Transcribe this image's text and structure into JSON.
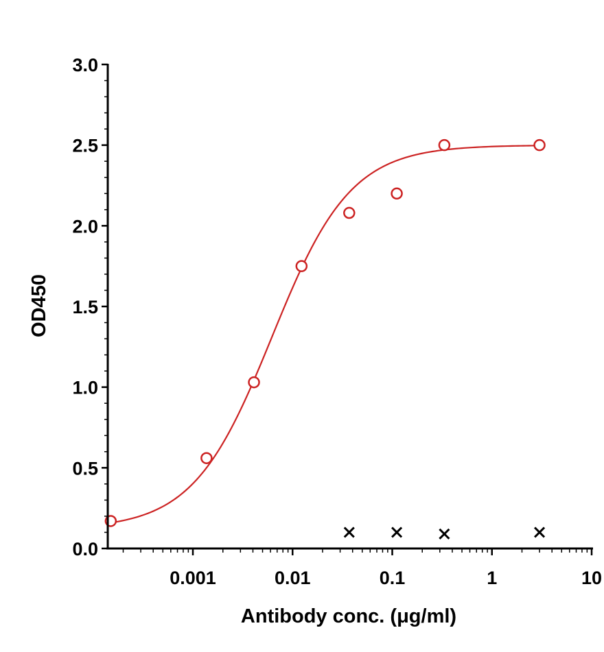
{
  "chart_data": {
    "type": "scatter",
    "title": "",
    "xlabel": "Antibody conc. (μg/ml)",
    "ylabel": "OD450",
    "x_scale": "log",
    "xlim": [
      0.00014,
      10
    ],
    "ylim": [
      0,
      3.0
    ],
    "x_ticks": [
      0.001,
      0.01,
      0.1,
      1,
      10
    ],
    "x_tick_labels": [
      "0.001",
      "0.01",
      "0.1",
      "1",
      "10"
    ],
    "y_ticks": [
      0,
      0.5,
      1.0,
      1.5,
      2.0,
      2.5,
      3.0
    ],
    "y_tick_labels": [
      "0.0",
      "0.5",
      "1.0",
      "1.5",
      "2.0",
      "2.5",
      "3.0"
    ],
    "grid": false,
    "legend": "none",
    "series": [
      {
        "marker": "open-circle",
        "color": "#cc2222",
        "x": [
          0.00015,
          0.00137,
          0.0041,
          0.0123,
          0.037,
          0.111,
          0.333,
          3.0
        ],
        "y": [
          0.17,
          0.56,
          1.03,
          1.75,
          2.08,
          2.2,
          2.5,
          2.5
        ],
        "fit": {
          "model": "4PL",
          "bottom": 0.12,
          "top": 2.5,
          "ec50": 0.0062,
          "hill": 1.1
        }
      },
      {
        "marker": "x-cross",
        "color": "#000000",
        "x": [
          0.037,
          0.111,
          0.333,
          3.0
        ],
        "y": [
          0.1,
          0.1,
          0.09,
          0.1
        ]
      }
    ]
  }
}
